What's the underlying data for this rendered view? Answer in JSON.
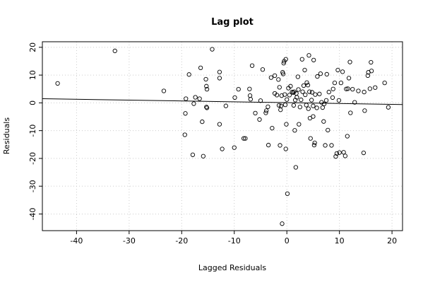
{
  "chart_data": {
    "type": "scatter",
    "title": "Lag plot",
    "xlabel": "Lagged Residuals",
    "ylabel": "Residuals",
    "xlim": [
      -46.5,
      22
    ],
    "ylim": [
      -46,
      22
    ],
    "x_ticks": [
      -40,
      -30,
      -20,
      -10,
      0,
      10,
      20
    ],
    "y_ticks": [
      -40,
      -30,
      -20,
      -10,
      0,
      10,
      20
    ],
    "grid": true,
    "regression_line": {
      "x": [
        -46.5,
        22
      ],
      "y": [
        1.5,
        -0.6
      ]
    },
    "points": [
      [
        -43.6,
        7.0
      ],
      [
        -32.7,
        18.7
      ],
      [
        -23.4,
        4.3
      ],
      [
        -19.2,
        1.5
      ],
      [
        -19.3,
        -3.8
      ],
      [
        -19.4,
        -11.5
      ],
      [
        -18.6,
        10.2
      ],
      [
        -17.9,
        -18.7
      ],
      [
        -17.7,
        -0.3
      ],
      [
        -17.4,
        2.0
      ],
      [
        -16.6,
        1.5
      ],
      [
        -16.4,
        12.6
      ],
      [
        -16.1,
        -6.8
      ],
      [
        -15.9,
        -19.2
      ],
      [
        -15.4,
        8.5
      ],
      [
        -15.3,
        6.0
      ],
      [
        -15.2,
        4.9
      ],
      [
        -15.3,
        -1.5
      ],
      [
        -15.2,
        -1.8
      ],
      [
        -14.2,
        19.3
      ],
      [
        -12.8,
        11.1
      ],
      [
        -12.8,
        8.9
      ],
      [
        -12.8,
        -7.7
      ],
      [
        -12.3,
        -16.6
      ],
      [
        -11.6,
        -1.1
      ],
      [
        -10.0,
        -16.1
      ],
      [
        -9.9,
        1.9
      ],
      [
        -9.2,
        4.9
      ],
      [
        -8.2,
        -12.8
      ],
      [
        -7.9,
        -12.8
      ],
      [
        -7.1,
        5.0
      ],
      [
        -7.0,
        2.6
      ],
      [
        -6.9,
        1.3
      ],
      [
        -6.6,
        13.4
      ],
      [
        -6.0,
        -3.7
      ],
      [
        -5.2,
        -6.0
      ],
      [
        -5.0,
        0.8
      ],
      [
        -4.6,
        12.0
      ],
      [
        -4.0,
        -3.6
      ],
      [
        -3.9,
        -2.8
      ],
      [
        -3.6,
        -1.4
      ],
      [
        -3.5,
        -15.2
      ],
      [
        -3.0,
        9.1
      ],
      [
        -2.8,
        -9.1
      ],
      [
        -2.3,
        3.4
      ],
      [
        -2.3,
        9.8
      ],
      [
        -1.9,
        2.8
      ],
      [
        -1.6,
        8.4
      ],
      [
        -1.5,
        -0.9
      ],
      [
        -1.4,
        5.6
      ],
      [
        -1.3,
        -15.3
      ],
      [
        -1.2,
        -2.5
      ],
      [
        -1.1,
        -1.1
      ],
      [
        -1.0,
        2.6
      ],
      [
        -0.9,
        -43.5
      ],
      [
        -0.8,
        11.0
      ],
      [
        -0.7,
        10.4
      ],
      [
        -0.6,
        14.3
      ],
      [
        -0.5,
        15.0
      ],
      [
        -0.4,
        3.0
      ],
      [
        -0.3,
        -0.7
      ],
      [
        -0.2,
        15.7
      ],
      [
        -0.2,
        -16.6
      ],
      [
        -0.1,
        -7.7
      ],
      [
        0.0,
        1.2
      ],
      [
        0.1,
        -32.7
      ],
      [
        0.3,
        5.3
      ],
      [
        0.5,
        2.8
      ],
      [
        0.7,
        6.0
      ],
      [
        1.0,
        3.9
      ],
      [
        1.2,
        3.7
      ],
      [
        1.3,
        -0.9
      ],
      [
        1.4,
        4.0
      ],
      [
        1.5,
        -9.9
      ],
      [
        1.6,
        1.0
      ],
      [
        1.7,
        -23.2
      ],
      [
        1.8,
        3.4
      ],
      [
        1.9,
        2.0
      ],
      [
        2.1,
        9.4
      ],
      [
        2.2,
        4.8
      ],
      [
        2.3,
        -7.7
      ],
      [
        2.5,
        -1.5
      ],
      [
        2.7,
        1.1
      ],
      [
        2.9,
        15.7
      ],
      [
        3.0,
        4.0
      ],
      [
        3.2,
        6.2
      ],
      [
        3.4,
        11.8
      ],
      [
        3.5,
        2.9
      ],
      [
        3.7,
        -0.8
      ],
      [
        3.8,
        7.3
      ],
      [
        4.0,
        6.4
      ],
      [
        4.1,
        -2.1
      ],
      [
        4.2,
        17.1
      ],
      [
        4.3,
        4.0
      ],
      [
        4.4,
        -5.5
      ],
      [
        4.5,
        -12.8
      ],
      [
        4.7,
        1.0
      ],
      [
        4.8,
        3.8
      ],
      [
        5.0,
        -1.1
      ],
      [
        5.0,
        -4.9
      ],
      [
        5.1,
        15.4
      ],
      [
        5.2,
        -15.2
      ],
      [
        5.3,
        -14.4
      ],
      [
        5.4,
        3.0
      ],
      [
        5.7,
        -1.8
      ],
      [
        5.8,
        9.5
      ],
      [
        6.2,
        3.2
      ],
      [
        6.4,
        10.5
      ],
      [
        6.6,
        0.2
      ],
      [
        6.8,
        -1.7
      ],
      [
        7.0,
        -6.7
      ],
      [
        7.1,
        -0.4
      ],
      [
        7.3,
        -15.3
      ],
      [
        7.5,
        0.9
      ],
      [
        7.6,
        10.3
      ],
      [
        7.8,
        -9.8
      ],
      [
        8.0,
        3.9
      ],
      [
        8.5,
        -15.3
      ],
      [
        8.7,
        1.9
      ],
      [
        8.8,
        5.0
      ],
      [
        9.1,
        7.2
      ],
      [
        9.3,
        -19.3
      ],
      [
        9.5,
        -18.2
      ],
      [
        9.7,
        11.8
      ],
      [
        9.9,
        0.9
      ],
      [
        10.0,
        -17.9
      ],
      [
        10.3,
        7.2
      ],
      [
        10.6,
        11.2
      ],
      [
        10.8,
        -17.8
      ],
      [
        11.1,
        -19.1
      ],
      [
        11.3,
        5.0
      ],
      [
        11.5,
        -12.0
      ],
      [
        11.6,
        5.1
      ],
      [
        11.8,
        8.9
      ],
      [
        12.0,
        14.7
      ],
      [
        12.1,
        -3.6
      ],
      [
        12.5,
        4.9
      ],
      [
        12.9,
        0.2
      ],
      [
        13.6,
        4.3
      ],
      [
        14.6,
        -18.0
      ],
      [
        14.7,
        3.9
      ],
      [
        14.8,
        -2.8
      ],
      [
        15.4,
        9.8
      ],
      [
        15.5,
        11.0
      ],
      [
        15.8,
        5.1
      ],
      [
        16.0,
        14.6
      ],
      [
        16.1,
        11.5
      ],
      [
        16.8,
        5.5
      ],
      [
        18.6,
        7.2
      ],
      [
        19.3,
        -1.6
      ]
    ]
  }
}
